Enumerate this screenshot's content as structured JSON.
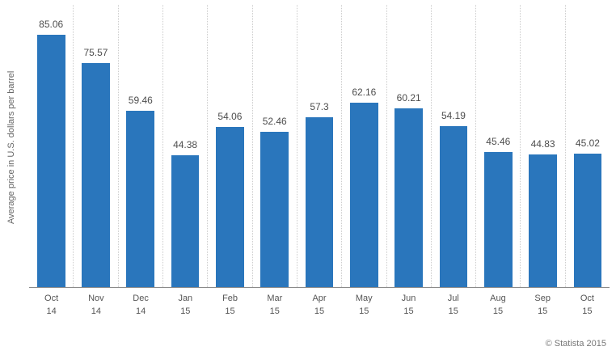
{
  "chart_data": {
    "type": "bar",
    "categories": [
      "Oct 14",
      "Nov 14",
      "Dec 14",
      "Jan 15",
      "Feb 15",
      "Mar 15",
      "Apr 15",
      "May 15",
      "Jun 15",
      "Jul 15",
      "Aug 15",
      "Sep 15",
      "Oct 15"
    ],
    "values": [
      85.06,
      75.57,
      59.46,
      44.38,
      54.06,
      52.46,
      57.3,
      62.16,
      60.21,
      54.19,
      45.46,
      44.83,
      45.02
    ],
    "title": "",
    "xlabel": "",
    "ylabel": "Average price in U.S. dollars per barrel",
    "ylim": [
      0,
      90
    ],
    "grid": "vertical-dotted",
    "legend": "none",
    "bar_color": "#2a76bc",
    "gridline_color": "#cccccc",
    "axis_line_color": "#8a8a8a",
    "value_label_color": "#4d4d4d"
  },
  "footer": {
    "copyright": "© Statista 2015"
  }
}
